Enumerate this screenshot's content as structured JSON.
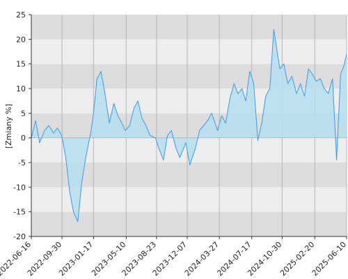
{
  "chart_data": {
    "type": "area",
    "ylabel": "[Zmiany %]",
    "xlabel": "",
    "title": "",
    "ylim": [
      -20,
      25
    ],
    "yticks": [
      -20,
      -15,
      -10,
      -5,
      0,
      5,
      10,
      15,
      20,
      25
    ],
    "x_tick_labels": [
      "2022-06-16",
      "2022-09-30",
      "2023-01-17",
      "2023-05-10",
      "2023-08-23",
      "2023-12-07",
      "2024-03-27",
      "2024-07-17",
      "2024-10-30",
      "2025-02-20",
      "2025-06-10"
    ],
    "grid": true,
    "colors": {
      "line": "#3a9be8",
      "fill": "#b8dff0",
      "band_light": "#eeeeee",
      "band_dark": "#dddddd",
      "vgrid": "#b5b5b5"
    },
    "series": [
      {
        "x": [
          "2022-06-16",
          "2022-07-01",
          "2022-07-15",
          "2022-08-01",
          "2022-08-16",
          "2022-09-01",
          "2022-09-15",
          "2022-09-30",
          "2022-10-14",
          "2022-10-28",
          "2022-11-10",
          "2022-11-25",
          "2022-12-09",
          "2022-12-23",
          "2023-01-09",
          "2023-01-17",
          "2023-01-31",
          "2023-02-14",
          "2023-02-28",
          "2023-03-15",
          "2023-03-31",
          "2023-04-14",
          "2023-04-28",
          "2023-05-10",
          "2023-05-25",
          "2023-06-09",
          "2023-06-23",
          "2023-07-07",
          "2023-07-21",
          "2023-08-04",
          "2023-08-23",
          "2023-09-06",
          "2023-09-20",
          "2023-10-04",
          "2023-10-18",
          "2023-11-02",
          "2023-11-16",
          "2023-12-07",
          "2023-12-21",
          "2024-01-10",
          "2024-01-24",
          "2024-02-07",
          "2024-02-21",
          "2024-03-06",
          "2024-03-27",
          "2024-04-10",
          "2024-04-24",
          "2024-05-09",
          "2024-05-23",
          "2024-06-06",
          "2024-06-20",
          "2024-07-03",
          "2024-07-17",
          "2024-07-31",
          "2024-08-14",
          "2024-08-28",
          "2024-09-11",
          "2024-09-25",
          "2024-10-09",
          "2024-10-30",
          "2024-11-13",
          "2024-11-27",
          "2024-12-11",
          "2024-12-27",
          "2025-01-10",
          "2025-01-24",
          "2025-02-07",
          "2025-02-20",
          "2025-03-06",
          "2025-03-20",
          "2025-04-03",
          "2025-04-17",
          "2025-05-02",
          "2025-05-16",
          "2025-05-30",
          "2025-06-10",
          "2025-06-20"
        ],
        "y": [
          0,
          3.5,
          -1,
          1.5,
          2.5,
          1,
          2,
          0.5,
          -4,
          -11,
          -15,
          -17,
          -9,
          -4,
          1,
          4,
          12,
          13.5,
          9,
          3,
          7,
          4.5,
          3,
          1.5,
          2.5,
          6,
          7.5,
          4,
          2.5,
          0.5,
          0,
          -2.5,
          -4.5,
          0.5,
          1.5,
          -2,
          -4,
          -1,
          -5.5,
          -2,
          1.5,
          2.5,
          3.5,
          5,
          1.5,
          4.5,
          3,
          8,
          11,
          9,
          10,
          7.5,
          13.5,
          11,
          -0.5,
          3,
          8.5,
          10,
          22,
          14,
          15,
          11,
          12.5,
          9,
          11,
          8.5,
          14,
          13,
          11.5,
          12,
          10,
          9,
          12,
          -4.5,
          13,
          14.5,
          17
        ]
      }
    ]
  }
}
